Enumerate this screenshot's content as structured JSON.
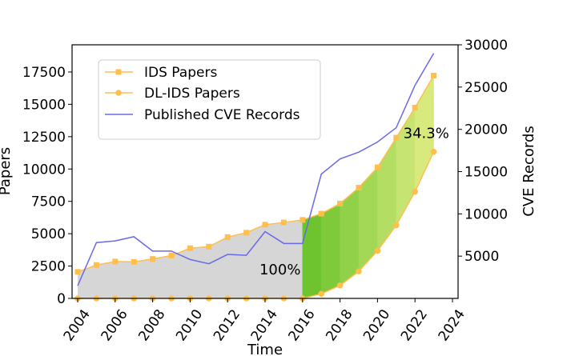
{
  "chart_data": {
    "type": "line",
    "xlabel": "Time",
    "ylabel": "Papers",
    "y2label": "CVE Records",
    "xlim": [
      2003.7,
      2024.3
    ],
    "ylim": [
      0,
      19600
    ],
    "y2lim": [
      0,
      30000
    ],
    "xticks": [
      "2004",
      "2006",
      "2008",
      "2010",
      "2012",
      "2014",
      "2016",
      "2018",
      "2020",
      "2022",
      "2024"
    ],
    "yticks": [
      "0",
      "2500",
      "5000",
      "7500",
      "10000",
      "12500",
      "15000",
      "17500"
    ],
    "y2ticks": [
      "5000",
      "10000",
      "15000",
      "20000",
      "25000",
      "30000"
    ],
    "x": [
      2004,
      2005,
      2006,
      2007,
      2008,
      2009,
      2010,
      2011,
      2012,
      2013,
      2014,
      2015,
      2016,
      2017,
      2018,
      2019,
      2020,
      2021,
      2022,
      2023
    ],
    "series": [
      {
        "name": "IDS Papers",
        "axis": "left",
        "marker": "square",
        "color": "#ffbf4d",
        "values": [
          2050,
          2580,
          2850,
          2820,
          3050,
          3310,
          3880,
          4000,
          4740,
          5080,
          5700,
          5870,
          6070,
          6550,
          7330,
          8560,
          10130,
          12420,
          14740,
          17220
        ]
      },
      {
        "name": "DL-IDS Papers",
        "axis": "left",
        "marker": "circle",
        "color": "#ffbf4d",
        "values": [
          0,
          0,
          0,
          0,
          0,
          0,
          0,
          0,
          0,
          0,
          0,
          0,
          0,
          350,
          1000,
          2090,
          3680,
          5650,
          8250,
          11330
        ]
      },
      {
        "name": "Published CVE Records",
        "axis": "right",
        "marker": "none",
        "color": "#6a6ae6",
        "values": [
          1500,
          6600,
          6800,
          7300,
          5600,
          5600,
          4600,
          4100,
          5200,
          5100,
          7900,
          6500,
          6500,
          14700,
          16500,
          17300,
          18500,
          20200,
          25200,
          29000
        ]
      }
    ],
    "fills": {
      "base_color": "#d6d6d6",
      "growth_color_start": "#6dc42e",
      "growth_color_end": "#d8ea7e"
    },
    "annotations": [
      {
        "text": "100%",
        "x": 2014.8,
        "y": 1850
      },
      {
        "text": "34.3%",
        "x": 2022.6,
        "y": 12400
      }
    ],
    "legend_position": "upper-left",
    "grid": false
  }
}
